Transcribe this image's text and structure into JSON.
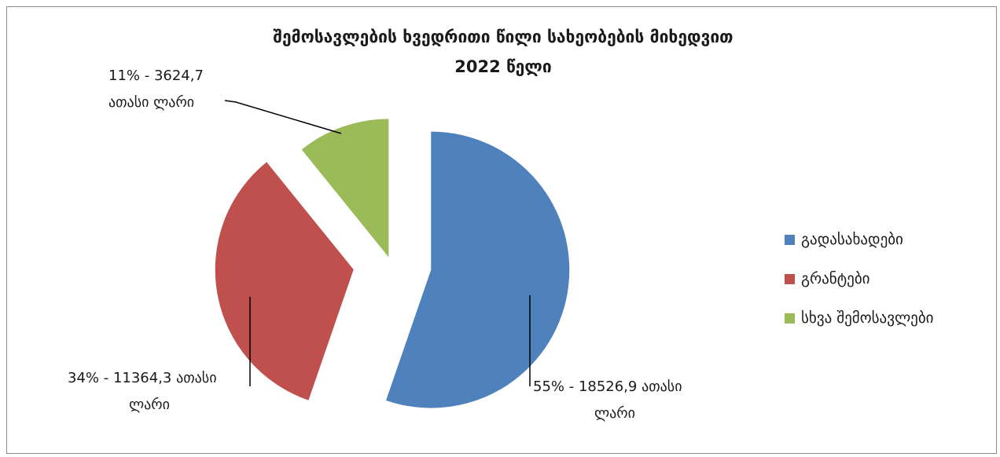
{
  "chart_data": {
    "type": "pie",
    "title_line1": "შემოსავლების ხვედრითი წილი სახეობების მიხედვით",
    "title_line2": "2022 წელი",
    "series": [
      {
        "name": "გადასახადები",
        "value": 18526.9,
        "percent": 55,
        "color": "#4f81bd",
        "label_line1": "55% - 18526,9 ათასი",
        "label_line2": "ლარი"
      },
      {
        "name": "გრანტები",
        "value": 11364.3,
        "percent": 34,
        "color": "#c0504d",
        "label_line1": "34% - 11364,3 ათასი",
        "label_line2": "ლარი"
      },
      {
        "name": "სხვა შემოსავლები",
        "value": 3624.7,
        "percent": 11,
        "color": "#9bbb59",
        "label_line1": "11% - 3624,7",
        "label_line2": "ათასი ლარი"
      }
    ],
    "legend_position": "right"
  }
}
